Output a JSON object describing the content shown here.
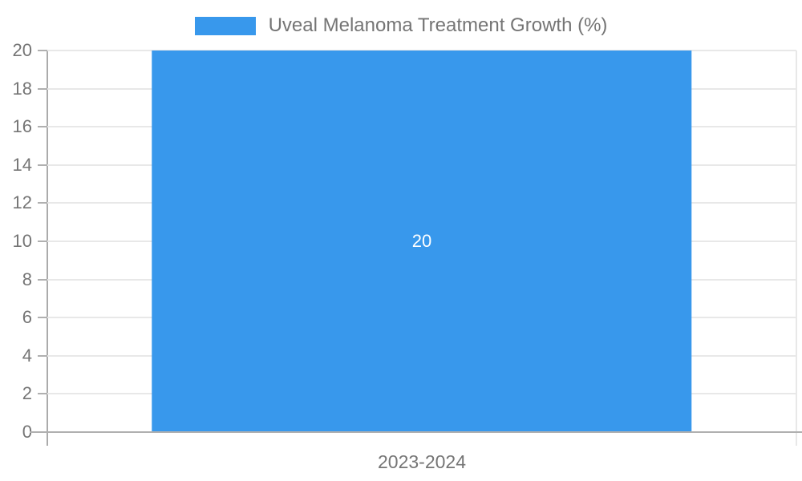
{
  "chart_data": {
    "type": "bar",
    "title": "",
    "xlabel": "",
    "ylabel": "",
    "categories": [
      "2023-2024"
    ],
    "series": [
      {
        "name": "Uveal Melanoma Treatment Growth (%)",
        "values": [
          20
        ],
        "color": "#3898EC"
      }
    ],
    "ylim": [
      0,
      20
    ],
    "yticks": [
      0,
      2,
      4,
      6,
      8,
      10,
      12,
      14,
      16,
      18,
      20
    ],
    "grid": true,
    "legend_position": "top",
    "bar_value_label": "20",
    "colors": {
      "bar": "#3898EC",
      "grid": "#E8E8E8",
      "axis": "#ABABAB",
      "baseline": "#B0B0B0",
      "text": "#757575",
      "bar_label": "#FFFFFF",
      "background": "#FFFFFF"
    }
  }
}
